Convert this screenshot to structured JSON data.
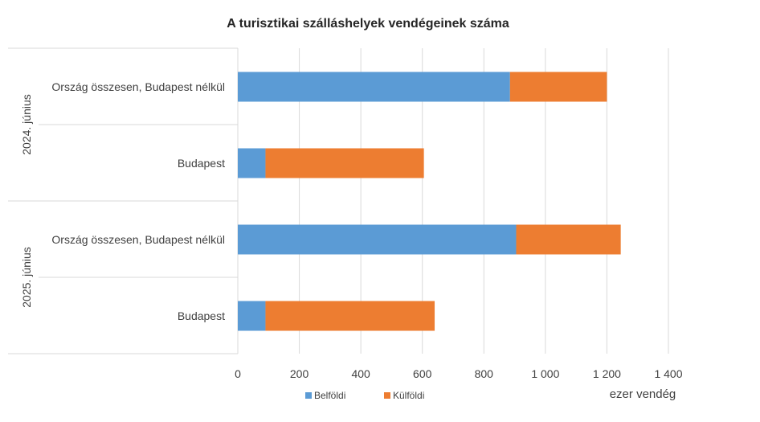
{
  "chart_data": {
    "type": "bar",
    "orientation": "horizontal",
    "stacked": true,
    "title": "A turisztikai szálláshelyek vendégeinek száma",
    "unit_label": "ezer vendég",
    "groups": [
      {
        "label": "2024. június",
        "categories": [
          "Ország összesen, Budapest nélkül",
          "Budapest"
        ]
      },
      {
        "label": "2025. június",
        "categories": [
          "Ország összesen, Budapest nélkül",
          "Budapest"
        ]
      }
    ],
    "series": [
      {
        "name": "Belföldi",
        "color": "#5B9BD5",
        "values": [
          885,
          90,
          905,
          90
        ]
      },
      {
        "name": "Külföldi",
        "color": "#ED7D31",
        "values": [
          315,
          515,
          340,
          550
        ]
      }
    ],
    "xlim": [
      0,
      1400
    ],
    "xticks": [
      "0",
      "200",
      "400",
      "600",
      "800",
      "1 000",
      "1 200",
      "1 400"
    ],
    "xtick_values": [
      0,
      200,
      400,
      600,
      800,
      1000,
      1200,
      1400
    ],
    "grid": "vertical",
    "legend_position": "bottom"
  }
}
